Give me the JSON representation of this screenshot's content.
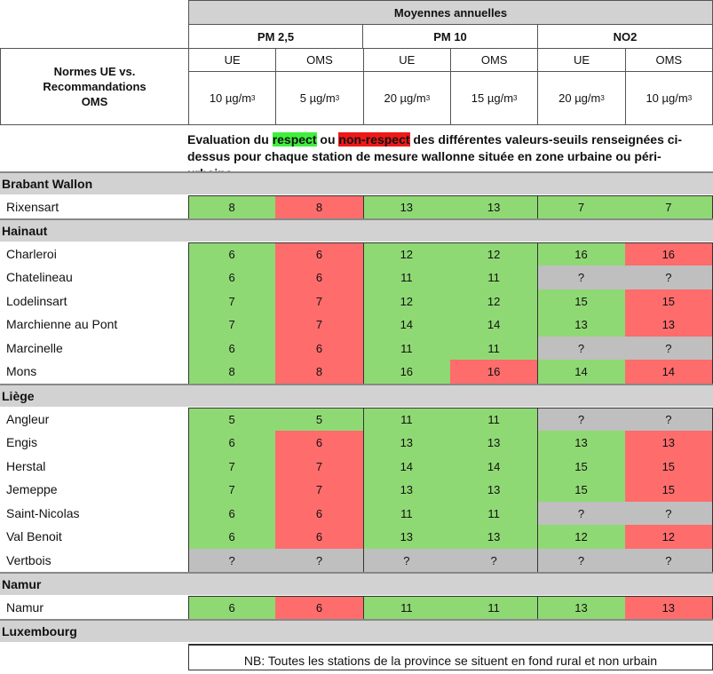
{
  "header": {
    "title": "Moyennes annuelles",
    "pollutants": [
      "PM 2,5",
      "PM 10",
      "NO2"
    ],
    "label": "Normes UE vs. Recommandations OMS",
    "sub": [
      "UE",
      "OMS",
      "UE",
      "OMS",
      "UE",
      "OMS"
    ],
    "limits": [
      {
        "v": "10 µg/m",
        "e": "3"
      },
      {
        "v": "5 µg/m",
        "e": "3"
      },
      {
        "v": "20 µg/m",
        "e": "3"
      },
      {
        "v": "15 µg/m",
        "e": "3"
      },
      {
        "v": "20 µg/m",
        "e": "3"
      },
      {
        "v": "10 µg/m",
        "e": "3"
      }
    ]
  },
  "evaluation": {
    "pre": "Evaluation du ",
    "respect": "respect",
    "mid": " ou ",
    "nonrespect": "non-respect",
    "post": " des différentes valeurs-seuils renseignées ci-dessus pour chaque station de mesure wallonne située en zone urbaine ou péri-urbaine"
  },
  "colors": {
    "respect": "#8fd974",
    "nonrespect": "#ff6c6c",
    "unknown": "#bfbfbf"
  },
  "provinces": [
    {
      "name": "Brabant Wallon",
      "stations": [
        {
          "name": "Rixensart",
          "values": [
            "8",
            "8",
            "13",
            "13",
            "7",
            "7"
          ],
          "status": [
            "g",
            "r",
            "g",
            "g",
            "g",
            "g"
          ]
        }
      ]
    },
    {
      "name": "Hainaut",
      "stations": [
        {
          "name": "Charleroi",
          "values": [
            "6",
            "6",
            "12",
            "12",
            "16",
            "16"
          ],
          "status": [
            "g",
            "r",
            "g",
            "g",
            "g",
            "r"
          ]
        },
        {
          "name": "Chatelineau",
          "values": [
            "6",
            "6",
            "11",
            "11",
            "?",
            "?"
          ],
          "status": [
            "g",
            "r",
            "g",
            "g",
            "q",
            "q"
          ]
        },
        {
          "name": "Lodelinsart",
          "values": [
            "7",
            "7",
            "12",
            "12",
            "15",
            "15"
          ],
          "status": [
            "g",
            "r",
            "g",
            "g",
            "g",
            "r"
          ]
        },
        {
          "name": "Marchienne au Pont",
          "values": [
            "7",
            "7",
            "14",
            "14",
            "13",
            "13"
          ],
          "status": [
            "g",
            "r",
            "g",
            "g",
            "g",
            "r"
          ]
        },
        {
          "name": "Marcinelle",
          "values": [
            "6",
            "6",
            "11",
            "11",
            "?",
            "?"
          ],
          "status": [
            "g",
            "r",
            "g",
            "g",
            "q",
            "q"
          ]
        },
        {
          "name": "Mons",
          "values": [
            "8",
            "8",
            "16",
            "16",
            "14",
            "14"
          ],
          "status": [
            "g",
            "r",
            "g",
            "r",
            "g",
            "r"
          ]
        }
      ]
    },
    {
      "name": "Liège",
      "stations": [
        {
          "name": "Angleur",
          "values": [
            "5",
            "5",
            "11",
            "11",
            "?",
            "?"
          ],
          "status": [
            "g",
            "g",
            "g",
            "g",
            "q",
            "q"
          ]
        },
        {
          "name": "Engis",
          "values": [
            "6",
            "6",
            "13",
            "13",
            "13",
            "13"
          ],
          "status": [
            "g",
            "r",
            "g",
            "g",
            "g",
            "r"
          ]
        },
        {
          "name": "Herstal",
          "values": [
            "7",
            "7",
            "14",
            "14",
            "15",
            "15"
          ],
          "status": [
            "g",
            "r",
            "g",
            "g",
            "g",
            "r"
          ]
        },
        {
          "name": "Jemeppe",
          "values": [
            "7",
            "7",
            "13",
            "13",
            "15",
            "15"
          ],
          "status": [
            "g",
            "r",
            "g",
            "g",
            "g",
            "r"
          ]
        },
        {
          "name": "Saint-Nicolas",
          "values": [
            "6",
            "6",
            "11",
            "11",
            "?",
            "?"
          ],
          "status": [
            "g",
            "r",
            "g",
            "g",
            "q",
            "q"
          ]
        },
        {
          "name": "Val Benoit",
          "values": [
            "6",
            "6",
            "13",
            "13",
            "12",
            "12"
          ],
          "status": [
            "g",
            "r",
            "g",
            "g",
            "g",
            "r"
          ]
        },
        {
          "name": "Vertbois",
          "values": [
            "?",
            "?",
            "?",
            "?",
            "?",
            "?"
          ],
          "status": [
            "q",
            "q",
            "q",
            "q",
            "q",
            "q"
          ]
        }
      ]
    },
    {
      "name": "Namur",
      "stations": [
        {
          "name": "Namur",
          "values": [
            "6",
            "6",
            "11",
            "11",
            "13",
            "13"
          ],
          "status": [
            "g",
            "r",
            "g",
            "g",
            "g",
            "r"
          ]
        }
      ]
    },
    {
      "name": "Luxembourg",
      "stations": [],
      "note": "NB: Toutes les stations de la province se situent en fond rural et non urbain"
    }
  ]
}
